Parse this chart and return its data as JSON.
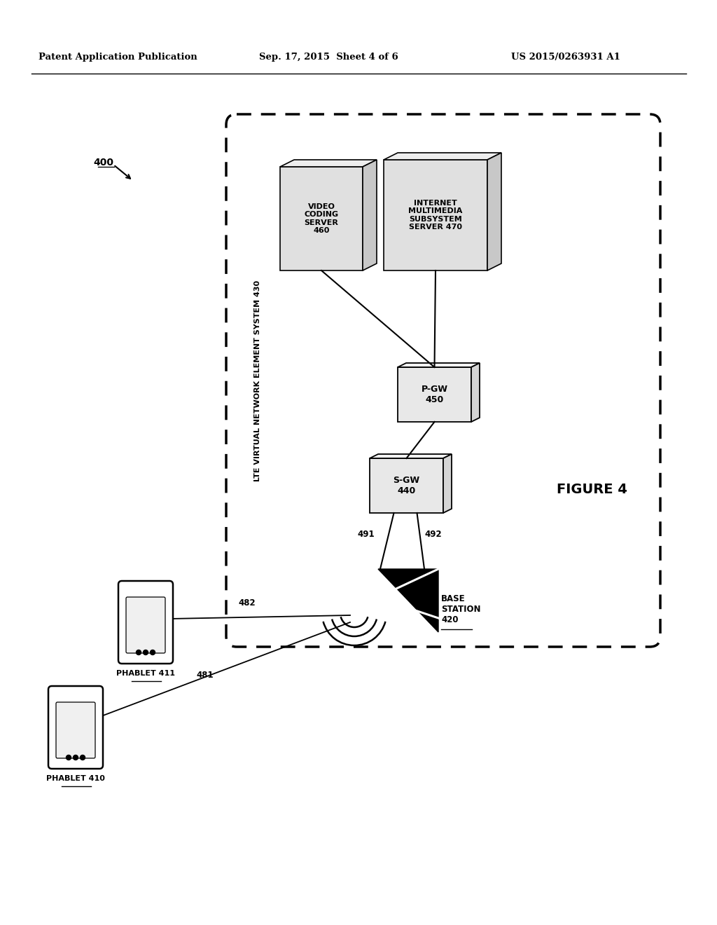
{
  "bg_color": "#ffffff",
  "header_left": "Patent Application Publication",
  "header_mid": "Sep. 17, 2015  Sheet 4 of 6",
  "header_right": "US 2015/0263931 A1",
  "figure_label": "FIGURE 4",
  "fig_number_label": "400",
  "lte_system_label": "LTE VIRTUAL NETWORK ELEMENT SYSTEM 430",
  "vcs_label": "VIDEO\nCODING\nSERVER\n460",
  "ims_label": "INTERNET\nMULTIMEDIA\nSUBSYSTEM\nSERVER 470",
  "pgw_label": "P-GW\n450",
  "sgw_label": "S-GW\n440",
  "bs_label": "BASE\nSTATION\n420",
  "ph410_label": "PHABLET 410",
  "ph411_label": "PHABLET 411",
  "label_491": "491",
  "label_492": "492",
  "label_481": "481",
  "label_482": "482"
}
